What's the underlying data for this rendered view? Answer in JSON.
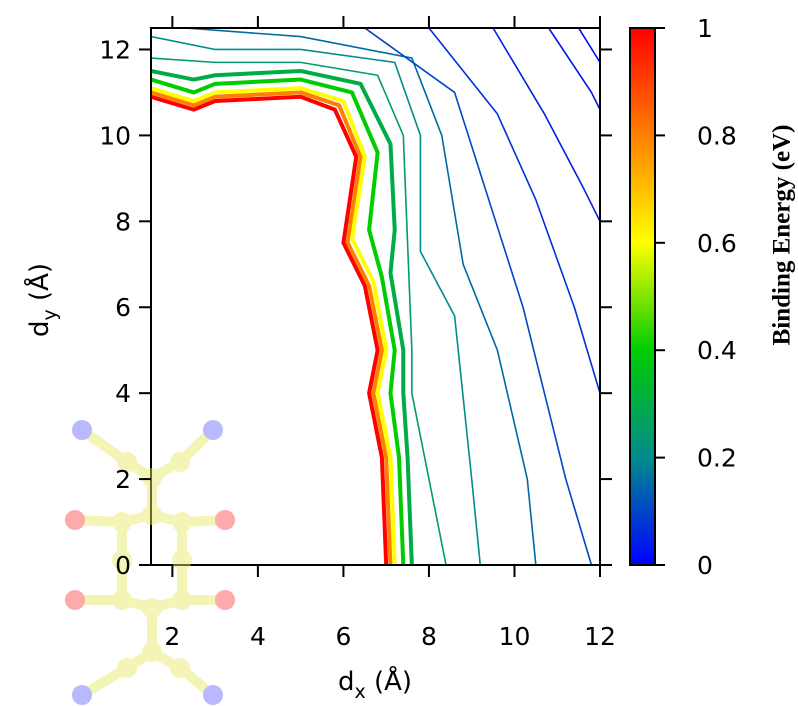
{
  "chart_data": {
    "type": "contour",
    "xlabel": [
      "d",
      "x",
      " (Å)"
    ],
    "ylabel": [
      "d",
      "y",
      " (Å)"
    ],
    "colorbar_label": "Binding Energy (eV)",
    "xlim": [
      1.5,
      12
    ],
    "xticks": [
      2,
      4,
      6,
      8,
      10,
      12
    ],
    "ylim": [
      0,
      12.5
    ],
    "yticks": [
      0,
      2,
      4,
      6,
      8,
      10,
      12
    ],
    "clim": [
      0,
      1
    ],
    "cticks": [
      0,
      0.2,
      0.4,
      0.6,
      0.8,
      1
    ],
    "colormap": [
      "#0000ff",
      "#008c8c",
      "#00cc00",
      "#ffff00",
      "#ff8000",
      "#ff0000"
    ],
    "contours": [
      {
        "level": 1,
        "x": [
          1.5,
          2.5,
          3,
          5,
          5.8,
          6.3,
          6.0,
          6.5,
          6.8,
          6.6,
          6.9,
          7.0
        ],
        "y": [
          10.9,
          10.6,
          10.8,
          10.9,
          10.6,
          9.5,
          7.5,
          6.5,
          5,
          4,
          2.5,
          0
        ]
      },
      {
        "level": 0.8,
        "x": [
          1.5,
          2.5,
          3,
          5,
          5.9,
          6.4,
          6.1,
          6.6,
          6.9,
          6.7,
          7.0,
          7.1
        ],
        "y": [
          11.0,
          10.7,
          10.9,
          11.0,
          10.7,
          9.5,
          7.5,
          6.5,
          5,
          4,
          2.5,
          0
        ]
      },
      {
        "level": 0.6,
        "x": [
          1.5,
          2.5,
          3,
          5,
          6.0,
          6.5,
          6.2,
          6.7,
          7.0,
          6.8,
          7.1,
          7.2
        ],
        "y": [
          11.1,
          10.8,
          11.0,
          11.1,
          10.8,
          9.5,
          7.6,
          6.6,
          5,
          4,
          2.5,
          0
        ]
      },
      {
        "level": 0.4,
        "x": [
          1.5,
          2.5,
          3,
          5,
          6.2,
          6.8,
          6.6,
          6.9,
          7.2,
          7.1,
          7.3,
          7.4
        ],
        "y": [
          11.3,
          11.0,
          11.2,
          11.3,
          11.0,
          9.6,
          7.8,
          6.7,
          5,
          4,
          2.5,
          0
        ]
      },
      {
        "level": 0.3,
        "x": [
          1.5,
          2.5,
          3,
          5,
          6.4,
          7.1,
          7.2,
          7.1,
          7.4,
          7.4,
          7.5,
          7.6
        ],
        "y": [
          11.5,
          11.3,
          11.4,
          11.5,
          11.2,
          9.8,
          7.8,
          6.8,
          5,
          4,
          2.5,
          0
        ]
      },
      {
        "level": 0.25,
        "x": [
          1.5,
          3,
          5,
          6.8,
          7.4,
          7.5,
          7.6,
          7.6,
          7.8,
          8.2,
          8.4
        ],
        "y": [
          11.8,
          11.7,
          11.7,
          11.4,
          10,
          7.5,
          5,
          4,
          3,
          1,
          0
        ]
      },
      {
        "level": 0.2,
        "x": [
          1.5,
          3,
          5,
          7.2,
          7.8,
          7.8,
          8.6,
          9.0,
          9.2
        ],
        "y": [
          12.3,
          12.0,
          12.0,
          11.7,
          10,
          7.3,
          5.8,
          2,
          0
        ]
      },
      {
        "level": 0.15,
        "x": [
          2.3,
          5,
          7.6,
          8.3,
          8.8,
          9.6,
          10.3,
          10.5
        ],
        "y": [
          12.5,
          12.3,
          11.8,
          10,
          7,
          5,
          2,
          0
        ]
      },
      {
        "level": 0.1,
        "x": [
          6.5,
          8.6,
          9.4,
          10.2,
          11.2,
          11.8
        ],
        "y": [
          12.5,
          11,
          8.5,
          6,
          2,
          0
        ]
      },
      {
        "level": 0.07,
        "x": [
          8,
          9.6,
          10.5,
          11.4,
          12
        ],
        "y": [
          12.5,
          10.5,
          8.5,
          6,
          4
        ]
      },
      {
        "level": 0.05,
        "x": [
          9.5,
          10.7,
          11.6,
          12
        ],
        "y": [
          12.5,
          10.5,
          8.8,
          8
        ]
      },
      {
        "level": 0.03,
        "x": [
          10.8,
          11.8,
          12
        ],
        "y": [
          12.5,
          11,
          10.6
        ]
      },
      {
        "level": 0.01,
        "x": [
          11.5,
          12
        ],
        "y": [
          12.5,
          11.7
        ]
      }
    ]
  }
}
